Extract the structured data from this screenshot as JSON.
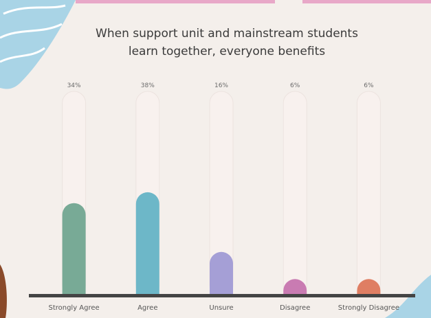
{
  "chart_data": {
    "type": "bar",
    "title": [
      "When support unit and mainstream students",
      "learn together, everyone benefits"
    ],
    "categories": [
      "Strongly Agree",
      "Agree",
      "Unsure",
      "Disagree",
      "Strongly Disagree"
    ],
    "values": [
      34,
      38,
      16,
      6,
      6
    ],
    "value_labels": [
      "34%",
      "38%",
      "16%",
      "6%",
      "6%"
    ],
    "colors": [
      "#78aa96",
      "#6db7c8",
      "#a59fd6",
      "#c97bb2",
      "#df7e63"
    ]
  }
}
